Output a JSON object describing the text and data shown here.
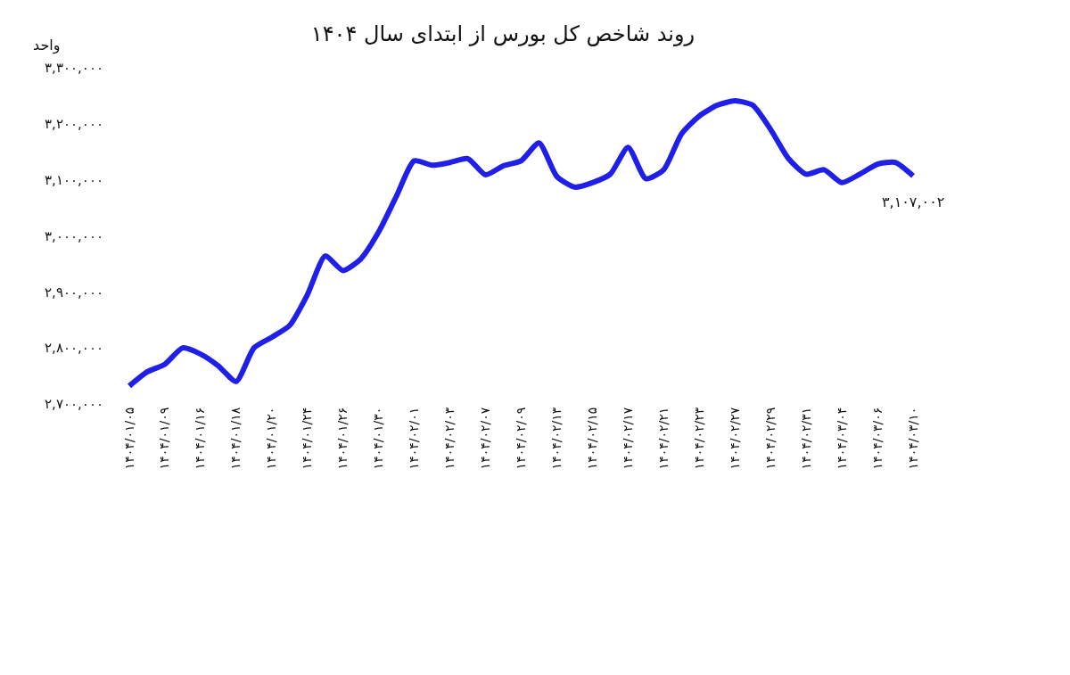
{
  "chart_data": {
    "type": "line",
    "title": "روند شاخص کل بورس از ابتدای سال ۱۴۰۴",
    "ylabel": "واحد",
    "categories": [
      "۱۴۰۴/۰۱/۰۵",
      null,
      "۱۴۰۴/۰۱/۰۹",
      null,
      "۱۴۰۴/۰۱/۱۶",
      null,
      "۱۴۰۴/۰۱/۱۸",
      null,
      "۱۴۰۴/۰۱/۲۰",
      null,
      "۱۴۰۴/۰۱/۲۴",
      null,
      "۱۴۰۴/۰۱/۲۶",
      null,
      "۱۴۰۴/۰۱/۳۰",
      null,
      "۱۴۰۴/۰۲/۰۱",
      null,
      "۱۴۰۴/۰۲/۰۳",
      null,
      "۱۴۰۴/۰۲/۰۷",
      null,
      "۱۴۰۴/۰۲/۰۹",
      null,
      "۱۴۰۴/۰۲/۱۳",
      null,
      "۱۴۰۴/۰۲/۱۵",
      null,
      "۱۴۰۴/۰۲/۱۷",
      null,
      "۱۴۰۴/۰۲/۲۱",
      null,
      "۱۴۰۴/۰۲/۲۳",
      null,
      "۱۴۰۴/۰۲/۲۷",
      null,
      "۱۴۰۴/۰۲/۲۹",
      null,
      "۱۴۰۴/۰۲/۳۱",
      null,
      "۱۴۰۴/۰۳/۰۴",
      null,
      "۱۴۰۴/۰۳/۰۶",
      null,
      "۱۴۰۴/۰۳/۱۰"
    ],
    "series": [
      {
        "color": "#1f1fe8",
        "values": [
          2732000,
          2757000,
          2771000,
          2800000,
          2789000,
          2768000,
          2740000,
          2800000,
          2819000,
          2840000,
          2895000,
          2964000,
          2938000,
          2959000,
          3007000,
          3071000,
          3134000,
          3126000,
          3131000,
          3138000,
          3109000,
          3125000,
          3134000,
          3166000,
          3106000,
          3087000,
          3095000,
          3110000,
          3158000,
          3102000,
          3118000,
          3182000,
          3214000,
          3233000,
          3241000,
          3233000,
          3190000,
          3138000,
          3110000,
          3118000,
          3095000,
          3110000,
          3128000,
          3131000,
          3107002
        ]
      }
    ],
    "ylim": [
      2700000,
      3300000
    ],
    "yticks": [
      {
        "value": 2700000,
        "label": "۲,۷۰۰,۰۰۰"
      },
      {
        "value": 2800000,
        "label": "۲,۸۰۰,۰۰۰"
      },
      {
        "value": 2900000,
        "label": "۲,۹۰۰,۰۰۰"
      },
      {
        "value": 3000000,
        "label": "۳,۰۰۰,۰۰۰"
      },
      {
        "value": 3100000,
        "label": "۳,۱۰۰,۰۰۰"
      },
      {
        "value": 3200000,
        "label": "۳,۲۰۰,۰۰۰"
      },
      {
        "value": 3300000,
        "label": "۳,۳۰۰,۰۰۰"
      }
    ],
    "annotations": [
      {
        "text": "۳,۱۰۷,۰۰۲",
        "x": "۱۴۰۴/۰۳/۱۰",
        "y": 3107002
      }
    ],
    "marker": "none",
    "line_style": "solid"
  }
}
